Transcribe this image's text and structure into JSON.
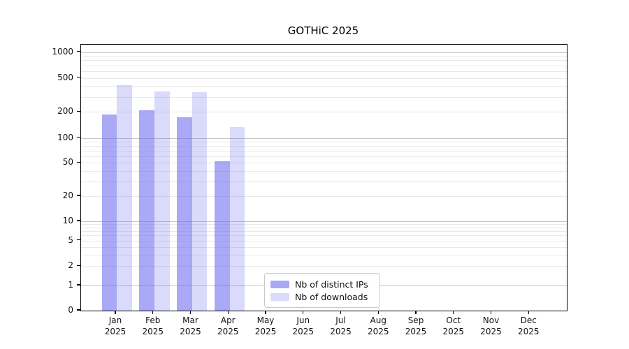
{
  "chart_data": {
    "type": "bar",
    "title": "GOTHiC 2025",
    "x_year": "2025",
    "categories": [
      "Jan",
      "Feb",
      "Mar",
      "Apr",
      "May",
      "Jun",
      "Jul",
      "Aug",
      "Sep",
      "Oct",
      "Nov",
      "Dec"
    ],
    "series": [
      {
        "name": "Nb of distinct IPs",
        "color": "rgba(102,102,238,0.56)",
        "values": [
          188,
          211,
          173,
          52,
          null,
          null,
          null,
          null,
          null,
          null,
          null,
          null
        ]
      },
      {
        "name": "Nb of downloads",
        "color": "rgba(102,102,238,0.24)",
        "values": [
          413,
          347,
          343,
          133,
          null,
          null,
          null,
          null,
          null,
          null,
          null,
          null
        ]
      }
    ],
    "y_ticks": [
      1000,
      500,
      200,
      100,
      50,
      20,
      10,
      5,
      2,
      1,
      0
    ],
    "yscale": "symlog",
    "ylim": [
      0,
      1220
    ],
    "xlabel": "",
    "ylabel": "",
    "grid": "horizontal",
    "legend_position": "lower-center-left"
  },
  "colors": {
    "grid_minor": "#e9e9e9",
    "grid_major": "#c6c6c6",
    "axis": "#000000"
  }
}
